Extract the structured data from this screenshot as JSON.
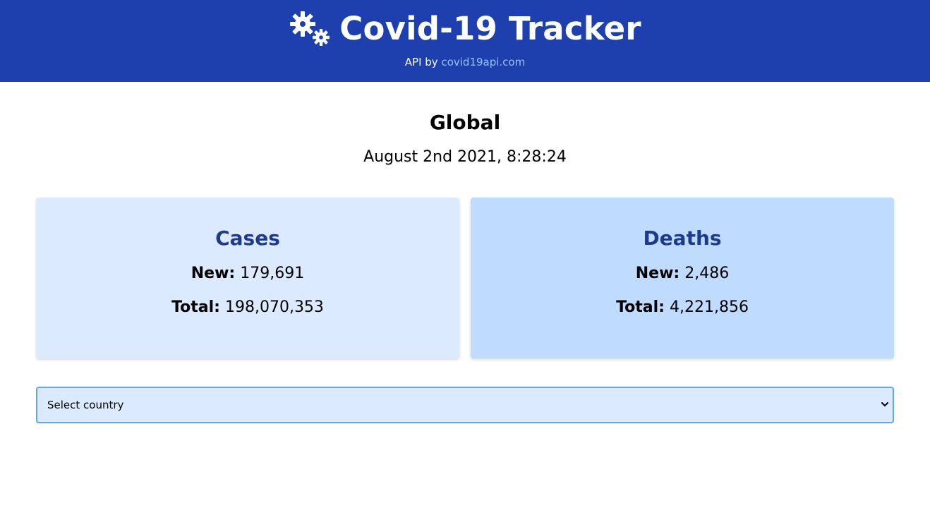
{
  "header": {
    "title": "Covid-19 Tracker",
    "credit_prefix": "API by",
    "credit_link": "covid19api.com",
    "logo_icon": "virus-gears-icon",
    "bg_color": "#1e40af"
  },
  "summary": {
    "scope": "Global",
    "timestamp": "August 2nd 2021, 8:28:24"
  },
  "cards": [
    {
      "title": "Cases",
      "new_label": "New:",
      "new_value": "179,691",
      "total_label": "Total:",
      "total_value": "198,070,353",
      "bg_color": "#dbeafe"
    },
    {
      "title": "Deaths",
      "new_label": "New:",
      "new_value": "2,486",
      "total_label": "Total:",
      "total_value": "4,221,856",
      "bg_color": "#bfdbfe"
    }
  ],
  "country_select": {
    "selected": "Select country",
    "chevron_icon": "chevron-down-icon"
  }
}
